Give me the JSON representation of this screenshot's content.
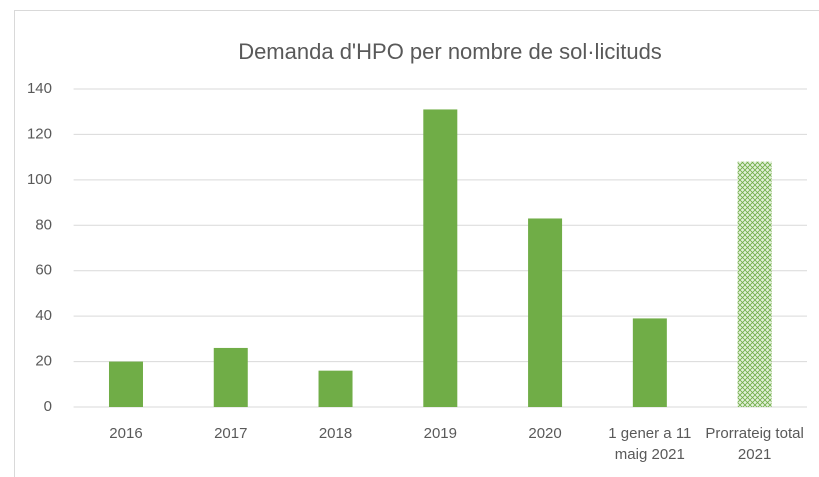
{
  "chart_data": {
    "type": "bar",
    "title": "Demanda d'HPO per nombre de sol·licituds",
    "categories": [
      "2016",
      "2017",
      "2018",
      "2019",
      "2020",
      "1 gener a 11 maig 2021",
      "Prorrateig total 2021"
    ],
    "values": [
      20,
      26,
      16,
      131,
      83,
      39,
      108
    ],
    "color": "#70ad47",
    "bar_styles": [
      "solid",
      "solid",
      "solid",
      "solid",
      "solid",
      "solid",
      "crosshatch"
    ],
    "ylim": [
      0,
      140
    ],
    "yticks": [
      0,
      20,
      40,
      60,
      80,
      100,
      120,
      140
    ],
    "grid": true
  }
}
